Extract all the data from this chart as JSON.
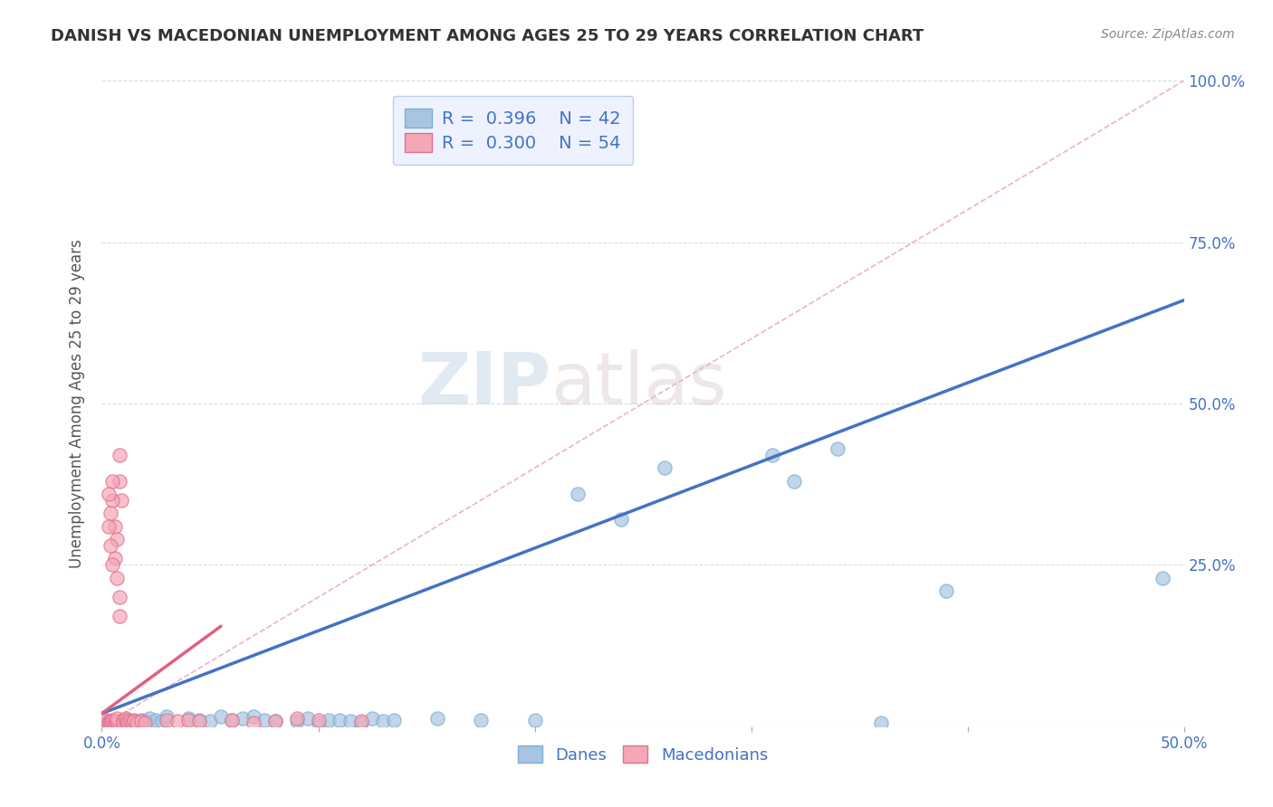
{
  "title": "DANISH VS MACEDONIAN UNEMPLOYMENT AMONG AGES 25 TO 29 YEARS CORRELATION CHART",
  "source": "Source: ZipAtlas.com",
  "ylabel": "Unemployment Among Ages 25 to 29 years",
  "xlim": [
    0.0,
    0.5
  ],
  "ylim": [
    0.0,
    1.0
  ],
  "xticks": [
    0.0,
    0.1,
    0.2,
    0.3,
    0.4,
    0.5
  ],
  "xticklabels": [
    "0.0%",
    "",
    "",
    "",
    "",
    "50.0%"
  ],
  "yticks": [
    0.0,
    0.25,
    0.5,
    0.75,
    1.0
  ],
  "yticklabels_right": [
    "",
    "25.0%",
    "50.0%",
    "75.0%",
    "100.0%"
  ],
  "danes_color": "#a8c4e0",
  "danes_edge_color": "#7aafd4",
  "macedonians_color": "#f4a7b5",
  "macedonians_edge_color": "#e07090",
  "danes_line_color": "#4472c4",
  "macedonians_line_color": "#e06080",
  "diagonal_color": "#e8a0b0",
  "danes_R": 0.396,
  "danes_N": 42,
  "macedonians_R": 0.3,
  "macedonians_N": 54,
  "danes_scatter": [
    [
      0.005,
      0.005
    ],
    [
      0.008,
      0.008
    ],
    [
      0.01,
      0.01
    ],
    [
      0.012,
      0.008
    ],
    [
      0.015,
      0.005
    ],
    [
      0.018,
      0.01
    ],
    [
      0.02,
      0.008
    ],
    [
      0.022,
      0.012
    ],
    [
      0.025,
      0.01
    ],
    [
      0.028,
      0.008
    ],
    [
      0.03,
      0.015
    ],
    [
      0.04,
      0.012
    ],
    [
      0.045,
      0.01
    ],
    [
      0.05,
      0.008
    ],
    [
      0.055,
      0.015
    ],
    [
      0.06,
      0.01
    ],
    [
      0.065,
      0.012
    ],
    [
      0.07,
      0.015
    ],
    [
      0.075,
      0.01
    ],
    [
      0.08,
      0.008
    ],
    [
      0.09,
      0.008
    ],
    [
      0.095,
      0.012
    ],
    [
      0.1,
      0.005
    ],
    [
      0.105,
      0.01
    ],
    [
      0.11,
      0.01
    ],
    [
      0.115,
      0.008
    ],
    [
      0.12,
      0.005
    ],
    [
      0.125,
      0.012
    ],
    [
      0.13,
      0.008
    ],
    [
      0.135,
      0.01
    ],
    [
      0.155,
      0.012
    ],
    [
      0.175,
      0.01
    ],
    [
      0.2,
      0.01
    ],
    [
      0.22,
      0.36
    ],
    [
      0.24,
      0.32
    ],
    [
      0.26,
      0.4
    ],
    [
      0.31,
      0.42
    ],
    [
      0.32,
      0.38
    ],
    [
      0.34,
      0.43
    ],
    [
      0.36,
      0.005
    ],
    [
      0.39,
      0.21
    ],
    [
      0.49,
      0.23
    ]
  ],
  "macedonians_scatter": [
    [
      0.002,
      0.01
    ],
    [
      0.003,
      0.008
    ],
    [
      0.003,
      0.005
    ],
    [
      0.004,
      0.008
    ],
    [
      0.004,
      0.005
    ],
    [
      0.004,
      0.003
    ],
    [
      0.005,
      0.005
    ],
    [
      0.005,
      0.003
    ],
    [
      0.005,
      0.01
    ],
    [
      0.006,
      0.005
    ],
    [
      0.006,
      0.008
    ],
    [
      0.006,
      0.003
    ],
    [
      0.007,
      0.005
    ],
    [
      0.007,
      0.008
    ],
    [
      0.007,
      0.012
    ],
    [
      0.008,
      0.38
    ],
    [
      0.008,
      0.42
    ],
    [
      0.009,
      0.35
    ],
    [
      0.01,
      0.01
    ],
    [
      0.01,
      0.005
    ],
    [
      0.011,
      0.008
    ],
    [
      0.011,
      0.012
    ],
    [
      0.012,
      0.01
    ],
    [
      0.012,
      0.005
    ],
    [
      0.013,
      0.008
    ],
    [
      0.014,
      0.005
    ],
    [
      0.015,
      0.01
    ],
    [
      0.015,
      0.008
    ],
    [
      0.016,
      0.005
    ],
    [
      0.018,
      0.008
    ],
    [
      0.02,
      0.005
    ],
    [
      0.005,
      0.38
    ],
    [
      0.005,
      0.35
    ],
    [
      0.006,
      0.31
    ],
    [
      0.007,
      0.29
    ],
    [
      0.006,
      0.26
    ],
    [
      0.007,
      0.23
    ],
    [
      0.008,
      0.2
    ],
    [
      0.008,
      0.17
    ],
    [
      0.004,
      0.33
    ],
    [
      0.003,
      0.36
    ],
    [
      0.003,
      0.31
    ],
    [
      0.004,
      0.28
    ],
    [
      0.005,
      0.25
    ],
    [
      0.03,
      0.01
    ],
    [
      0.035,
      0.008
    ],
    [
      0.04,
      0.01
    ],
    [
      0.045,
      0.008
    ],
    [
      0.06,
      0.01
    ],
    [
      0.07,
      0.005
    ],
    [
      0.08,
      0.008
    ],
    [
      0.09,
      0.012
    ],
    [
      0.1,
      0.01
    ],
    [
      0.12,
      0.008
    ]
  ],
  "danes_trendline_x": [
    0.0,
    0.5
  ],
  "danes_trendline_y": [
    0.02,
    0.66
  ],
  "macedonians_trendline_x": [
    0.0,
    0.055
  ],
  "macedonians_trendline_y": [
    0.02,
    0.155
  ],
  "diagonal_line": [
    [
      0.0,
      0.0
    ],
    [
      0.5,
      1.0
    ]
  ],
  "background_color": "#ffffff",
  "grid_color": "#cccccc",
  "watermark_zip": "ZIP",
  "watermark_atlas": "atlas",
  "title_color": "#333333",
  "axis_label_color": "#555555",
  "tick_label_color": "#4472c4",
  "legend_box_color": "#eef2ff",
  "legend_text_color": "#4472c4"
}
